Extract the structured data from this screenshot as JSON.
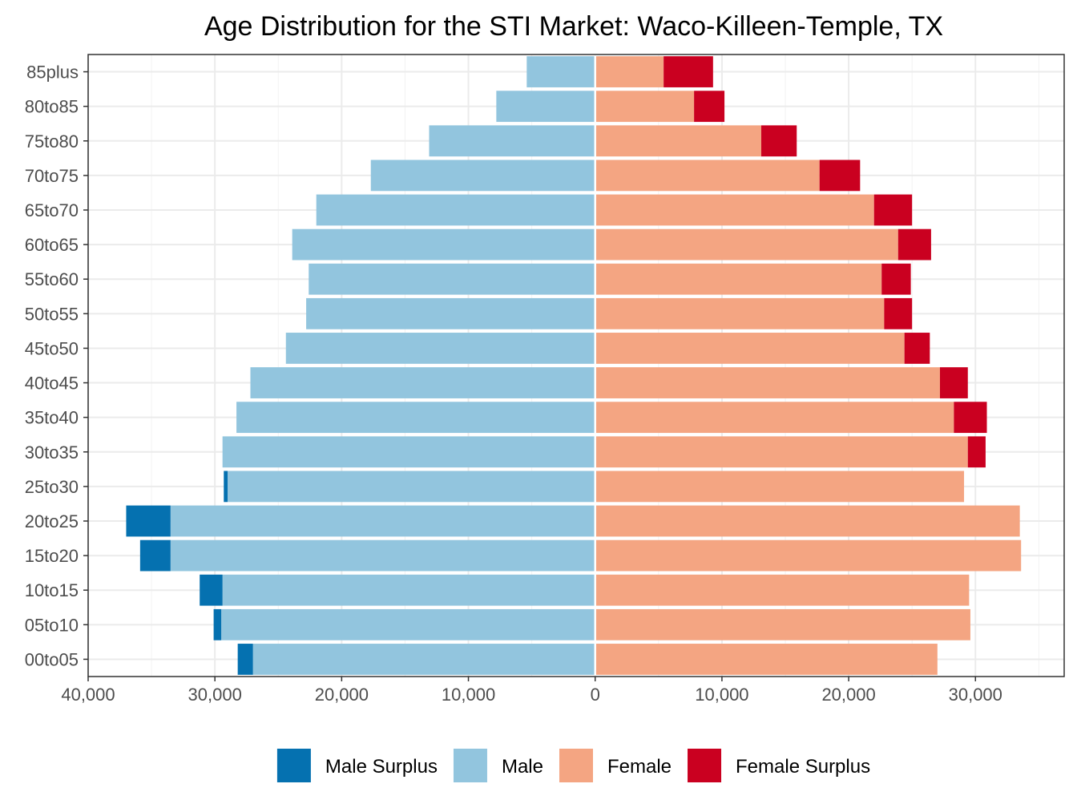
{
  "chart_data": {
    "type": "bar",
    "orientation": "horizontal",
    "title": "Age Distribution for the STI Market: Waco-Killeen-Temple, TX",
    "xlabel": "",
    "ylabel": "",
    "xlim": [
      -40000,
      37000
    ],
    "x_ticks": [
      -40000,
      -30000,
      -20000,
      -10000,
      0,
      10000,
      20000,
      30000
    ],
    "x_tick_labels": [
      "40,000",
      "30,000",
      "20,000",
      "10,000",
      "0",
      "10,000",
      "20,000",
      "30,000"
    ],
    "categories": [
      "00to05",
      "05to10",
      "10to15",
      "15to20",
      "20to25",
      "25to30",
      "30to35",
      "35to40",
      "40to45",
      "45to50",
      "50to55",
      "55to60",
      "60to65",
      "65to70",
      "70to75",
      "75to80",
      "80to85",
      "85plus"
    ],
    "series": [
      {
        "name": "Male Surplus",
        "color": "#0571b0",
        "base": "male",
        "values": [
          1200,
          600,
          1800,
          2400,
          3500,
          300,
          0,
          0,
          0,
          0,
          0,
          0,
          0,
          0,
          0,
          0,
          0,
          0
        ]
      },
      {
        "name": "Male",
        "color": "#92c5de",
        "values": [
          27000,
          29500,
          29400,
          33500,
          33500,
          29000,
          29400,
          28300,
          27200,
          24400,
          22800,
          22600,
          23900,
          22000,
          17700,
          13100,
          7800,
          5400
        ]
      },
      {
        "name": "Female",
        "color": "#f4a582",
        "values": [
          27000,
          29600,
          29500,
          33600,
          33500,
          29100,
          29400,
          28300,
          27200,
          24400,
          22800,
          22600,
          23900,
          22000,
          17700,
          13100,
          7800,
          5400
        ]
      },
      {
        "name": "Female Surplus",
        "color": "#ca0020",
        "base": "female",
        "values": [
          0,
          0,
          0,
          0,
          0,
          0,
          1400,
          2600,
          2200,
          2000,
          2200,
          2300,
          2600,
          3000,
          3200,
          2800,
          2400,
          3900
        ]
      }
    ],
    "legend": {
      "position": "bottom",
      "items": [
        {
          "label": "Male Surplus",
          "color": "#0571b0"
        },
        {
          "label": "Male",
          "color": "#92c5de"
        },
        {
          "label": "Female",
          "color": "#f4a582"
        },
        {
          "label": "Female Surplus",
          "color": "#ca0020"
        }
      ]
    },
    "grid": true
  }
}
